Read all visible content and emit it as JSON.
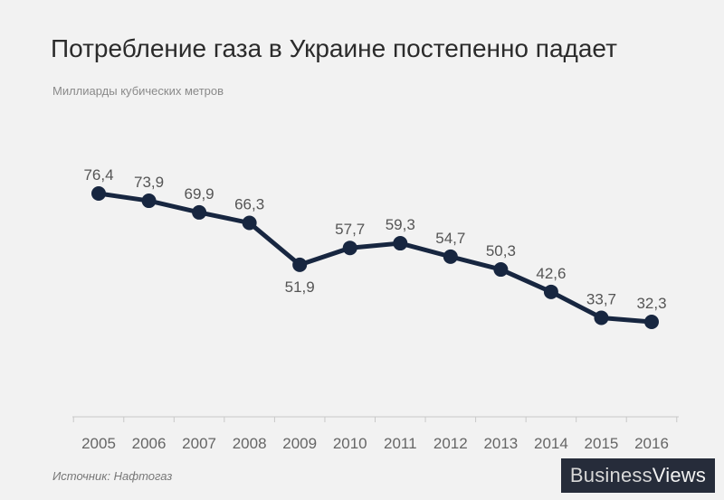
{
  "chart_data": {
    "type": "line",
    "title": "Потребление газа в Украине постепенно падает",
    "subtitle": "Миллиарды кубических метров",
    "categories": [
      "2005",
      "2006",
      "2007",
      "2008",
      "2009",
      "2010",
      "2011",
      "2012",
      "2013",
      "2014",
      "2015",
      "2016"
    ],
    "values": [
      76.4,
      73.9,
      69.9,
      66.3,
      51.9,
      57.7,
      59.3,
      54.7,
      50.3,
      42.6,
      33.7,
      32.3
    ],
    "labels": [
      "76,4",
      "73,9",
      "69,9",
      "66,3",
      "51,9",
      "57,7",
      "59,3",
      "54,7",
      "50,3",
      "42,6",
      "33,7",
      "32,3"
    ],
    "label_position": [
      "above",
      "above",
      "above",
      "above",
      "below",
      "above",
      "above",
      "above",
      "above",
      "above",
      "above",
      "above"
    ],
    "line_color": "#172640",
    "grid": false
  },
  "source": "Источник: Нафтогаз",
  "logo": {
    "part1": "Business",
    "part2": "Views"
  }
}
